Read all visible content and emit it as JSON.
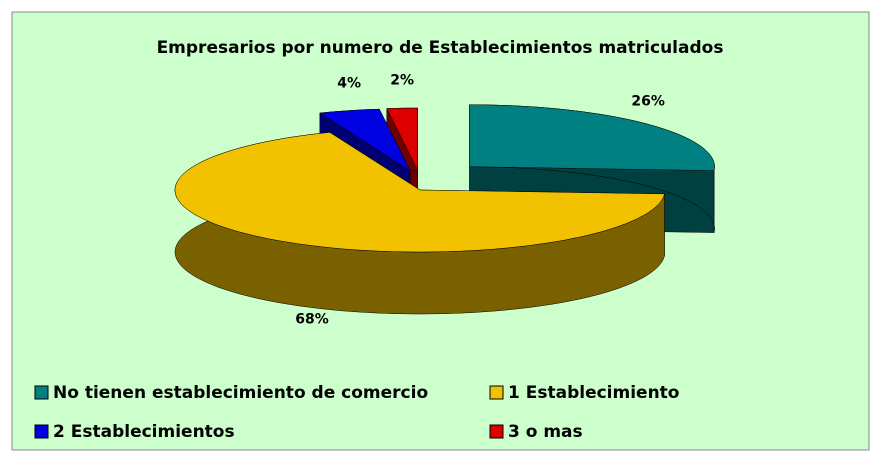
{
  "chart_data": {
    "type": "pie",
    "title": "Empresarios por numero de Establecimientos matriculados",
    "categories": [
      "No tienen establecimiento de comercio",
      "1 Establecimiento",
      "2 Establecimientos",
      "3 o mas"
    ],
    "values": [
      26,
      68,
      4,
      2
    ],
    "value_labels": [
      "26%",
      "68%",
      "4%",
      "2%"
    ],
    "colors": [
      "#008080",
      "#f2c200",
      "#0000e0",
      "#dd0000"
    ],
    "legend": "bottom"
  }
}
